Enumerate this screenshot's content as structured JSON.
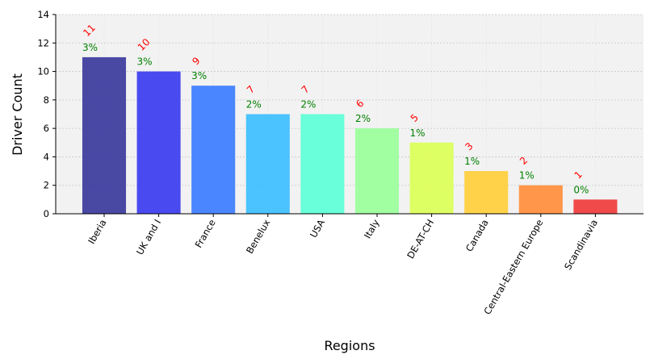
{
  "chart_data": {
    "type": "bar",
    "categories": [
      "Iberia",
      "UK and I",
      "France",
      "Benelux",
      "USA",
      "Italy",
      "DE-AT-CH",
      "Canada",
      "Central-Eastern Europe",
      "Scandinavia"
    ],
    "values": [
      11,
      10,
      9,
      7,
      7,
      6,
      5,
      3,
      2,
      1
    ],
    "count_labels": [
      "11",
      "10",
      "9",
      "7",
      "7",
      "6",
      "5",
      "3",
      "2",
      "1"
    ],
    "percent_labels": [
      "3%",
      "3%",
      "3%",
      "2%",
      "2%",
      "2%",
      "1%",
      "1%",
      "1%",
      "0%"
    ],
    "bar_colors": [
      "#3f3f9f",
      "#4040f0",
      "#4080ff",
      "#40c0ff",
      "#60ffd8",
      "#9cff9c",
      "#dcff5c",
      "#ffd040",
      "#ff9040",
      "#f04040"
    ],
    "count_label_color": "#ff0000",
    "percent_label_color": "#008000",
    "xlabel": "Regions",
    "ylabel": "Driver Count",
    "ylim": [
      0,
      14
    ],
    "yticks": [
      0,
      2,
      4,
      6,
      8,
      10,
      12,
      14
    ],
    "grid": true,
    "plot_background": "#f2f2f2"
  }
}
